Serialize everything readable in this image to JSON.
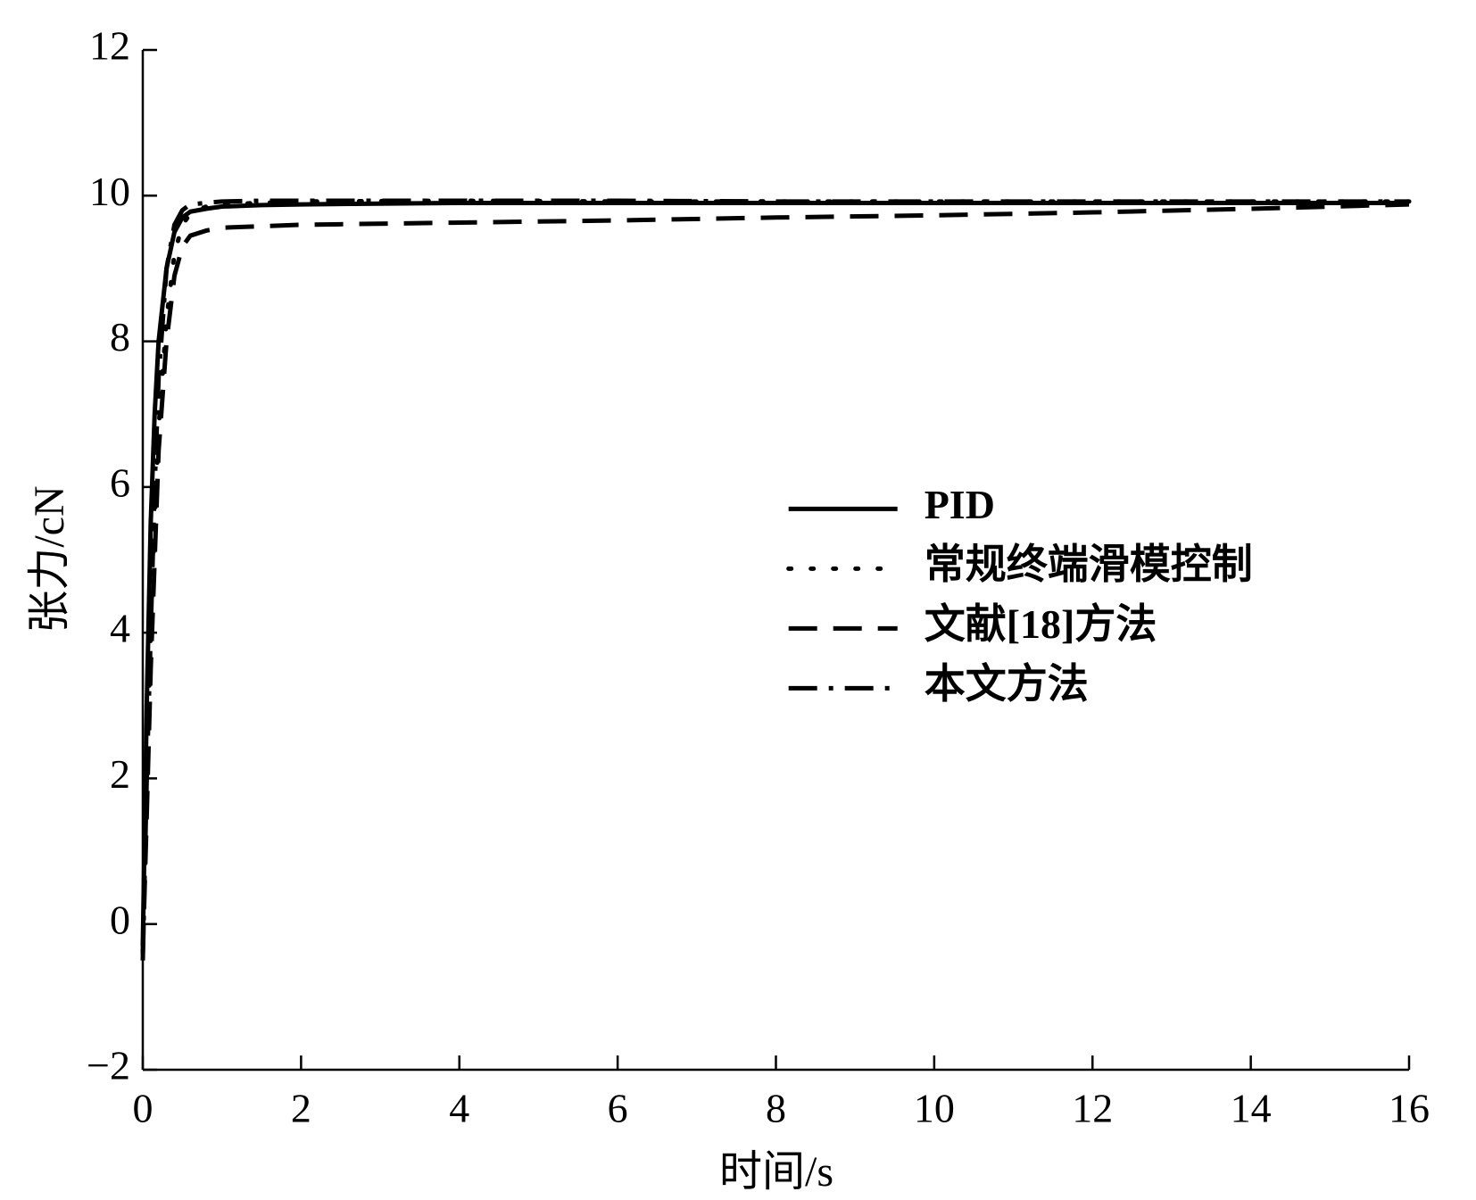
{
  "chart_data": {
    "type": "line",
    "x_label": "时间/s",
    "y_label": "张力/cN",
    "x": [
      0,
      0.05,
      0.1,
      0.15,
      0.2,
      0.3,
      0.4,
      0.5,
      0.6,
      0.8,
      1,
      1.5,
      2,
      4,
      6,
      8,
      10,
      12,
      14,
      16
    ],
    "series": [
      {
        "name": "PID",
        "color": "#000000",
        "linestyle": "solid",
        "values": [
          -0.3,
          3,
          5.5,
          7,
          8,
          9,
          9.5,
          9.7,
          9.78,
          9.82,
          9.85,
          9.87,
          9.88,
          9.9,
          9.9,
          9.9,
          9.9,
          9.9,
          9.9,
          9.9
        ]
      },
      {
        "name": "常规终端滑模控制",
        "color": "#000000",
        "linestyle": "dotted",
        "values": [
          -0.4,
          2,
          4,
          5.5,
          6.8,
          8.3,
          9.2,
          9.6,
          9.75,
          9.85,
          9.88,
          9.9,
          9.92,
          9.93,
          9.92,
          9.92,
          9.92,
          9.92,
          9.92,
          9.92
        ]
      },
      {
        "name": "文献[18]方法",
        "color": "#000000",
        "linestyle": "dashed",
        "values": [
          -0.4,
          1.5,
          3.5,
          5,
          6.5,
          8,
          8.9,
          9.3,
          9.45,
          9.52,
          9.56,
          9.58,
          9.6,
          9.63,
          9.66,
          9.7,
          9.73,
          9.77,
          9.82,
          9.88
        ]
      },
      {
        "name": "本文方法",
        "color": "#000000",
        "linestyle": "dashdot",
        "values": [
          -0.5,
          2,
          4,
          6,
          7.5,
          9,
          9.6,
          9.8,
          9.88,
          9.9,
          9.92,
          9.93,
          9.93,
          9.93,
          9.93,
          9.92,
          9.92,
          9.92,
          9.92,
          9.92
        ]
      }
    ],
    "xlim": [
      0,
      16
    ],
    "xticks": [
      0,
      2,
      4,
      6,
      8,
      10,
      12,
      14,
      16
    ],
    "ylim": [
      -2,
      12
    ],
    "yticks": [
      {
        "value": -2,
        "label": "−2"
      },
      0,
      2,
      4,
      6,
      8,
      10,
      12
    ],
    "grid": false,
    "legend": "center right"
  }
}
